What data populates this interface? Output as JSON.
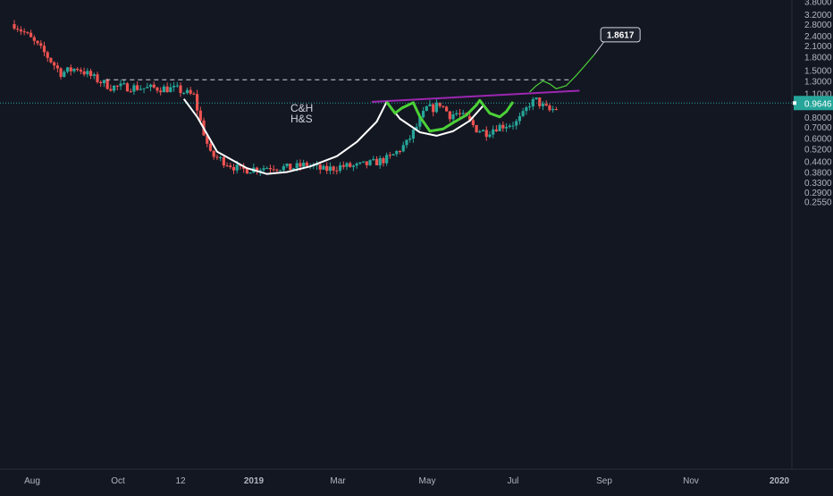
{
  "chart_data": {
    "type": "candlestick",
    "scale": "log",
    "annotations": [
      "C&H",
      "H&S"
    ],
    "y_ticks": [
      "3.8000",
      "3.2000",
      "2.8000",
      "2.4000",
      "2.1000",
      "1.8000",
      "1.5000",
      "1.3000",
      "1.1000",
      "0.9646",
      "0.8000",
      "0.7000",
      "0.6000",
      "0.5200",
      "0.4400",
      "0.3800",
      "0.3300",
      "0.2900",
      "0.2550"
    ],
    "y_tick_values": [
      3.8,
      3.2,
      2.8,
      2.4,
      2.1,
      1.8,
      1.5,
      1.3,
      1.1,
      0.9646,
      0.8,
      0.7,
      0.6,
      0.52,
      0.44,
      0.38,
      0.33,
      0.29,
      0.255
    ],
    "x_ticks": [
      "Aug",
      "Oct",
      "12",
      "2019",
      "Mar",
      "May",
      "Jul",
      "Sep",
      "Nov",
      "2020"
    ],
    "x_tick_bold": [
      "2019",
      "2020"
    ],
    "current_price": 0.9646,
    "target_price": "1.8617",
    "resistance_level": 1.32,
    "trendline": {
      "from_price": 0.98,
      "to_price": 1.14
    },
    "colors": {
      "background": "#131722",
      "up": "#26a69a",
      "down": "#ef5350",
      "pattern_curve": "#ffffff",
      "hs_pattern": "#4cd137",
      "projection": "#4cd137",
      "neckline": "#9c27b0",
      "current_price_line": "#26a69a",
      "axis_text": "#b2b5be"
    },
    "price_path": [
      [
        0,
        2.8
      ],
      [
        8,
        2.4
      ],
      [
        18,
        1.9
      ],
      [
        28,
        1.45
      ],
      [
        38,
        1.55
      ],
      [
        48,
        1.35
      ],
      [
        58,
        1.2
      ],
      [
        68,
        1.2
      ],
      [
        78,
        1.18
      ],
      [
        88,
        1.18
      ],
      [
        98,
        1.16
      ],
      [
        108,
        1.06
      ],
      [
        112,
        0.75
      ],
      [
        118,
        0.48
      ],
      [
        126,
        0.44
      ],
      [
        136,
        0.39
      ],
      [
        146,
        0.4
      ],
      [
        156,
        0.41
      ],
      [
        166,
        0.4
      ],
      [
        176,
        0.42
      ],
      [
        186,
        0.39
      ],
      [
        196,
        0.41
      ],
      [
        206,
        0.41
      ],
      [
        216,
        0.43
      ],
      [
        226,
        0.46
      ],
      [
        236,
        0.56
      ],
      [
        242,
        0.7
      ],
      [
        248,
        0.9
      ],
      [
        252,
        0.9
      ],
      [
        256,
        0.96
      ],
      [
        262,
        0.82
      ],
      [
        266,
        0.84
      ],
      [
        272,
        0.78
      ],
      [
        278,
        0.68
      ],
      [
        284,
        0.65
      ],
      [
        290,
        0.7
      ],
      [
        296,
        0.72
      ],
      [
        302,
        0.74
      ],
      [
        306,
        0.82
      ],
      [
        310,
        0.96
      ],
      [
        314,
        1.0
      ],
      [
        318,
        0.92
      ],
      [
        322,
        0.87
      ],
      [
        326,
        0.9
      ]
    ]
  },
  "price_labels": {
    "current": "0.9646",
    "target": "1.8617"
  }
}
